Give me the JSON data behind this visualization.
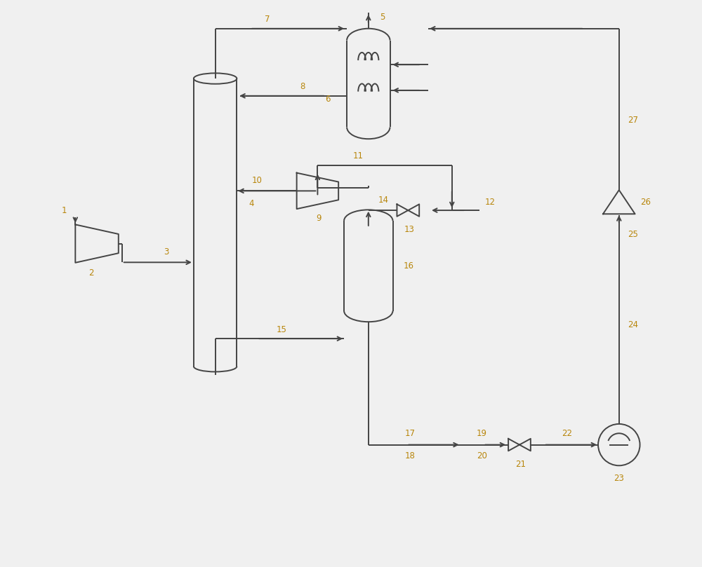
{
  "bg_color": "#f0f0f0",
  "line_color": "#444444",
  "label_color": "#b8860b",
  "fig_width": 10.0,
  "fig_height": 8.09,
  "dpi": 100,
  "lw": 1.4
}
